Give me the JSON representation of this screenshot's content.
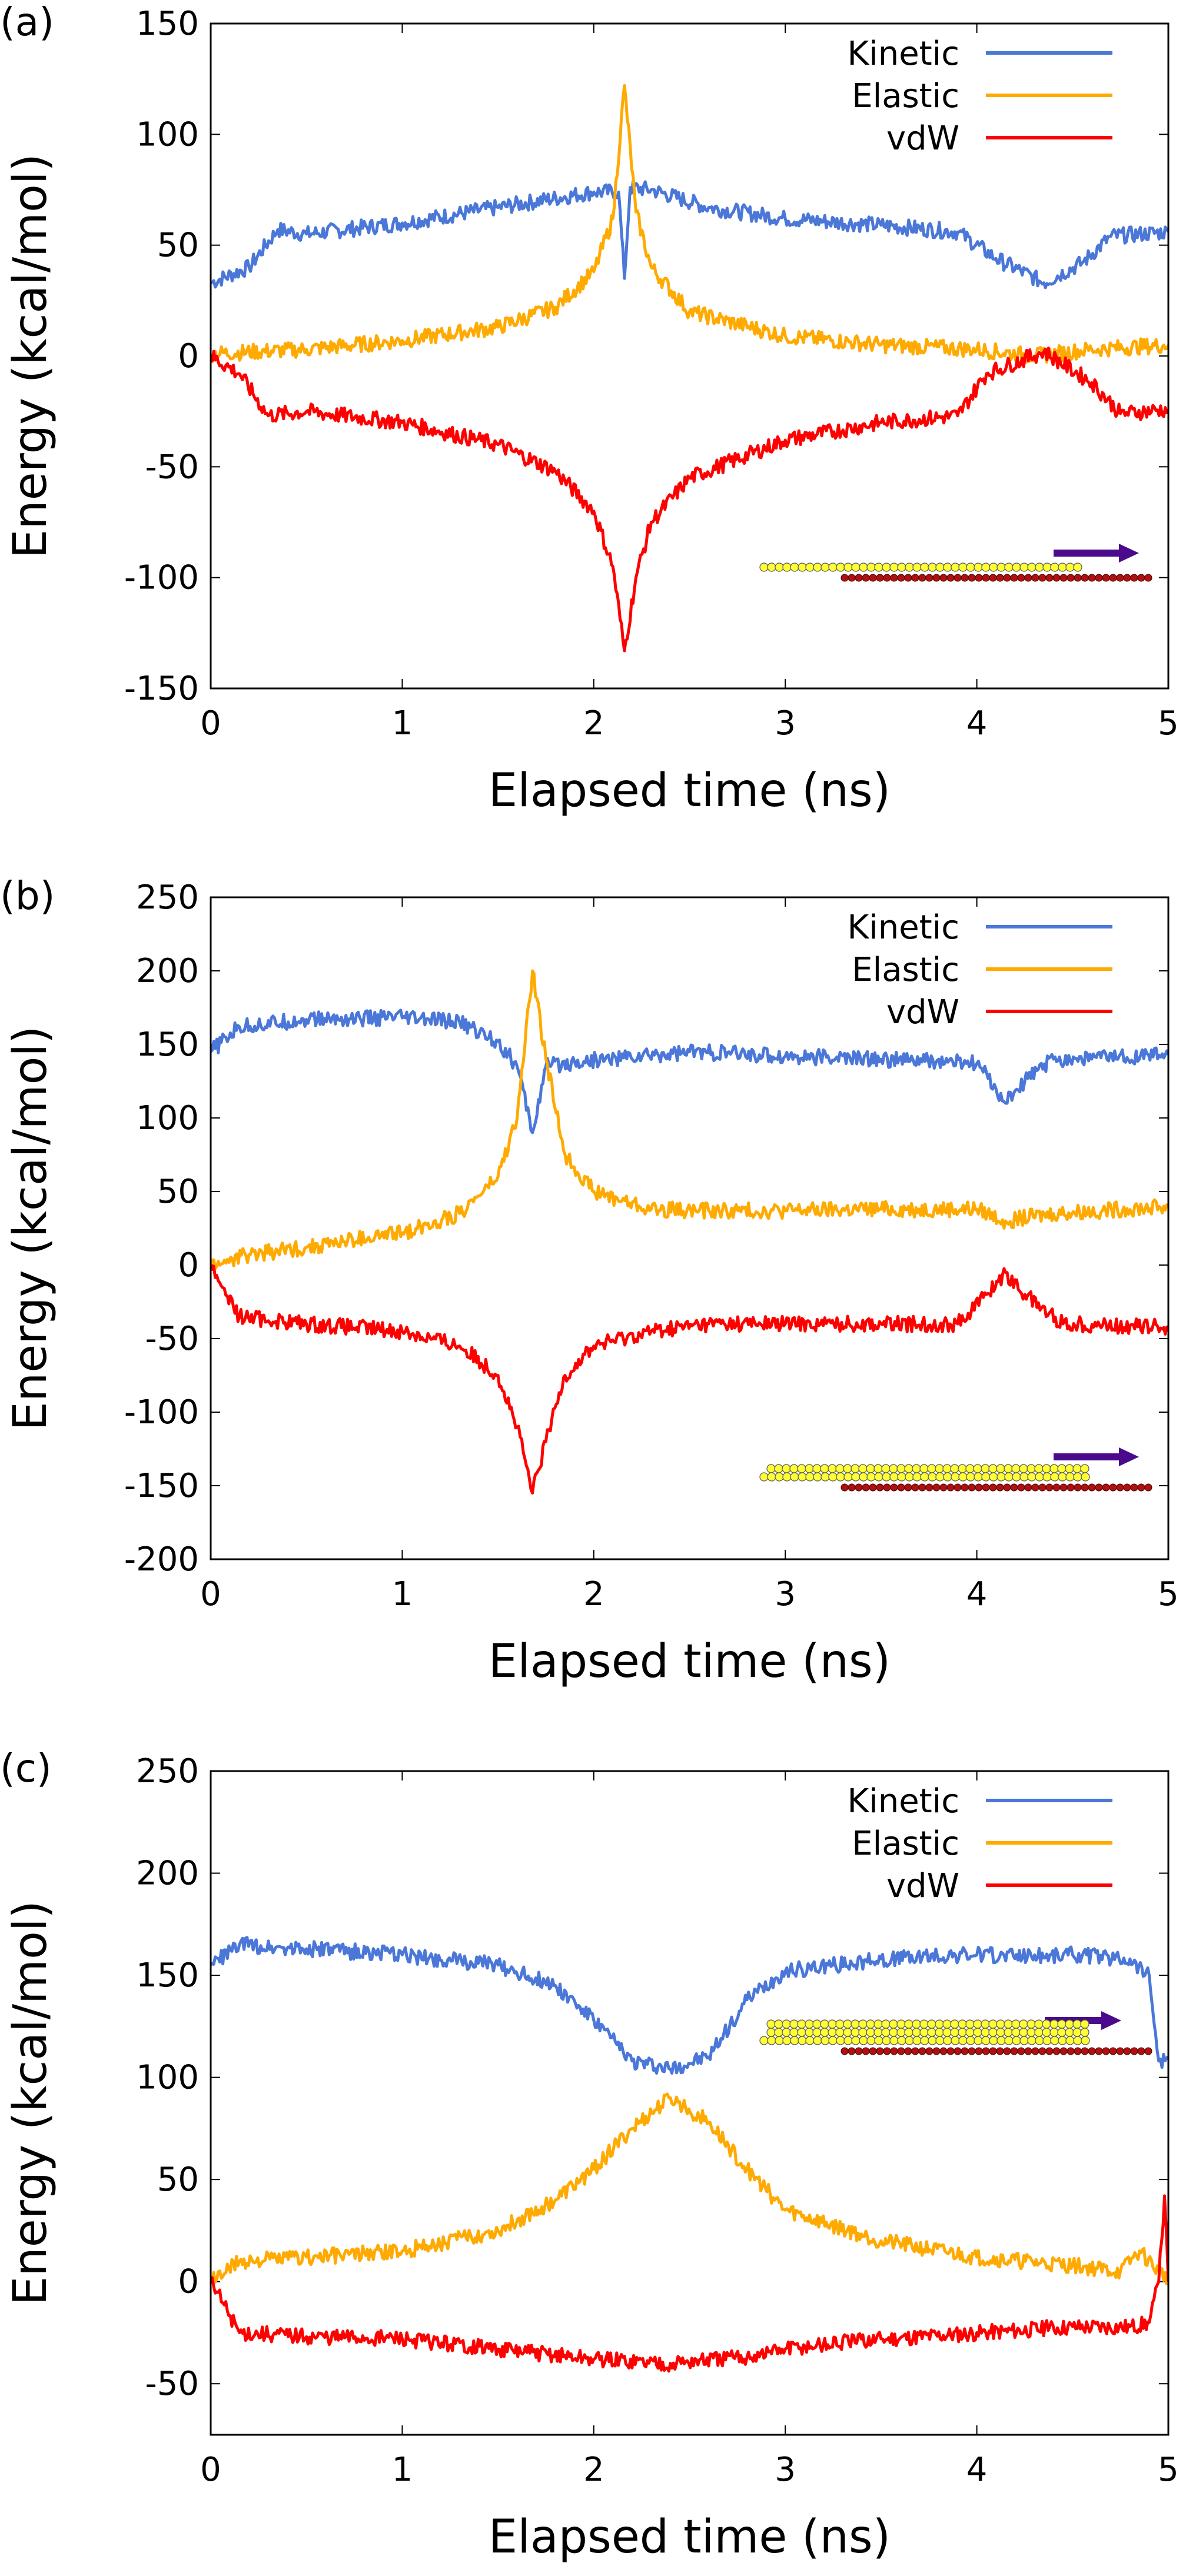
{
  "figure": {
    "line_colors": {
      "Kinetic": "#4a77d8",
      "Elastic": "#ffaa00",
      "vdW": "#ff0000"
    },
    "arrow_color": "#4b0a8c",
    "ball_colors": {
      "top": "#ffff33",
      "bottom": "#b01010"
    }
  },
  "chart_data": [
    {
      "type": "line",
      "panel_label": "(a)",
      "xlabel": "Elapsed time (ns)",
      "ylabel": "Energy (kcal/mol)",
      "xlim": [
        0,
        5
      ],
      "ylim": [
        -150,
        150
      ],
      "xticks": [
        0,
        1,
        2,
        3,
        4,
        5
      ],
      "yticks": [
        -150,
        -100,
        -50,
        0,
        50,
        100,
        150
      ],
      "grid": false,
      "legend": "top-right",
      "series": [
        {
          "name": "Kinetic",
          "color": "#4a77d8",
          "x": [
            0,
            0.2,
            0.35,
            0.5,
            1.0,
            1.5,
            2.0,
            2.13,
            2.16,
            2.19,
            2.3,
            2.6,
            3.0,
            3.5,
            3.9,
            4.1,
            4.35,
            4.55,
            4.7,
            5.0
          ],
          "y": [
            33,
            40,
            57,
            55,
            60,
            67,
            74,
            74,
            35,
            76,
            75,
            67,
            62,
            59,
            56,
            44,
            33,
            42,
            54,
            56
          ]
        },
        {
          "name": "Elastic",
          "color": "#ffaa00",
          "x": [
            0,
            0.5,
            1.0,
            1.5,
            1.8,
            2.0,
            2.1,
            2.16,
            2.22,
            2.3,
            2.5,
            3.0,
            3.5,
            4.0,
            4.3,
            4.6,
            5.0
          ],
          "y": [
            1,
            3,
            7,
            13,
            22,
            38,
            62,
            122,
            65,
            40,
            20,
            9,
            5,
            3,
            0,
            3,
            5
          ]
        },
        {
          "name": "vdW",
          "color": "#ff0000",
          "x": [
            0,
            0.15,
            0.3,
            0.5,
            1.0,
            1.5,
            1.8,
            2.0,
            2.1,
            2.16,
            2.22,
            2.3,
            2.5,
            3.0,
            3.5,
            3.9,
            4.05,
            4.35,
            4.6,
            4.75,
            5.0
          ],
          "y": [
            0,
            -8,
            -27,
            -25,
            -30,
            -40,
            -52,
            -70,
            -95,
            -133,
            -100,
            -75,
            -55,
            -38,
            -30,
            -27,
            -8,
            2,
            -12,
            -26,
            -24
          ]
        }
      ]
    },
    {
      "type": "line",
      "panel_label": "(b)",
      "xlabel": "Elapsed time (ns)",
      "ylabel": "Energy (kcal/mol)",
      "xlim": [
        0,
        5
      ],
      "ylim": [
        -200,
        250
      ],
      "xticks": [
        0,
        1,
        2,
        3,
        4,
        5
      ],
      "yticks": [
        -200,
        -150,
        -100,
        -50,
        0,
        50,
        100,
        150,
        200,
        250
      ],
      "grid": false,
      "legend": "top-right",
      "series": [
        {
          "name": "Kinetic",
          "color": "#4a77d8",
          "x": [
            0,
            0.15,
            0.5,
            1.0,
            1.3,
            1.5,
            1.6,
            1.68,
            1.75,
            1.9,
            2.5,
            3.0,
            3.5,
            4.0,
            4.1,
            4.15,
            4.25,
            4.4,
            5.0
          ],
          "y": [
            145,
            162,
            167,
            168,
            165,
            152,
            135,
            90,
            135,
            138,
            145,
            142,
            140,
            137,
            120,
            110,
            125,
            140,
            143
          ]
        },
        {
          "name": "Elastic",
          "color": "#ffaa00",
          "x": [
            0,
            0.2,
            0.5,
            1.0,
            1.3,
            1.5,
            1.6,
            1.68,
            1.75,
            1.85,
            2.0,
            2.3,
            2.6,
            3.0,
            3.5,
            4.0,
            4.15,
            4.4,
            5.0
          ],
          "y": [
            0,
            7,
            12,
            22,
            35,
            60,
            100,
            200,
            140,
            75,
            50,
            38,
            37,
            37,
            38,
            38,
            30,
            35,
            40
          ]
        },
        {
          "name": "vdW",
          "color": "#ff0000",
          "x": [
            0,
            0.15,
            0.5,
            1.0,
            1.3,
            1.5,
            1.6,
            1.68,
            1.75,
            1.85,
            2.0,
            2.3,
            2.6,
            3.0,
            3.5,
            3.9,
            4.05,
            4.15,
            4.25,
            4.45,
            5.0
          ],
          "y": [
            0,
            -35,
            -40,
            -45,
            -55,
            -75,
            -110,
            -155,
            -120,
            -75,
            -55,
            -45,
            -40,
            -40,
            -40,
            -40,
            -20,
            -5,
            -20,
            -40,
            -42
          ]
        }
      ]
    },
    {
      "type": "line",
      "panel_label": "(c)",
      "xlabel": "Elapsed time (ns)",
      "ylabel": "Energy (kcal/mol)",
      "xlim": [
        0,
        5
      ],
      "ylim": [
        -75,
        250
      ],
      "xticks": [
        0,
        1,
        2,
        3,
        4,
        5
      ],
      "yticks": [
        -50,
        0,
        50,
        100,
        150,
        200,
        250
      ],
      "grid": false,
      "legend": "top-right",
      "series": [
        {
          "name": "Kinetic",
          "color": "#4a77d8",
          "x": [
            0,
            0.15,
            0.5,
            1.0,
            1.5,
            1.8,
            2.0,
            2.2,
            2.4,
            2.6,
            2.8,
            3.0,
            3.5,
            4.0,
            4.5,
            4.8,
            4.9,
            4.95,
            5.0
          ],
          "y": [
            155,
            165,
            163,
            160,
            155,
            145,
            128,
            108,
            104,
            110,
            138,
            152,
            158,
            160,
            160,
            158,
            150,
            108,
            110
          ]
        },
        {
          "name": "Elastic",
          "color": "#ffaa00",
          "x": [
            0,
            0.15,
            0.5,
            1.0,
            1.5,
            1.8,
            2.0,
            2.2,
            2.4,
            2.6,
            2.8,
            3.0,
            3.5,
            4.0,
            4.5,
            4.75,
            4.85,
            4.95,
            5.0
          ],
          "y": [
            0,
            10,
            12,
            15,
            25,
            40,
            55,
            75,
            90,
            78,
            55,
            35,
            20,
            12,
            8,
            5,
            15,
            5,
            2
          ]
        },
        {
          "name": "vdW",
          "color": "#ff0000",
          "x": [
            0,
            0.15,
            0.5,
            1.0,
            1.5,
            2.0,
            2.4,
            2.8,
            3.0,
            3.5,
            4.0,
            4.5,
            4.8,
            4.9,
            4.95,
            4.98,
            5.0
          ],
          "y": [
            0,
            -25,
            -27,
            -28,
            -33,
            -38,
            -40,
            -37,
            -33,
            -28,
            -25,
            -22,
            -22,
            -20,
            0,
            42,
            0
          ]
        }
      ]
    }
  ]
}
